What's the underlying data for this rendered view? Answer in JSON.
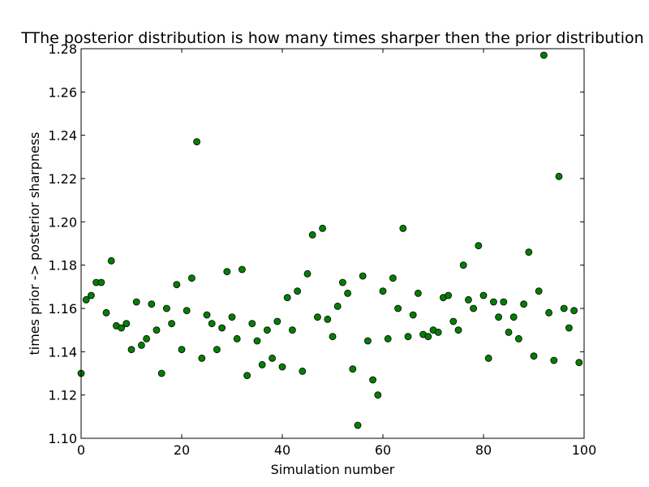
{
  "chart_data": {
    "type": "scatter",
    "title": "TThe posterior distribution is how many times sharper then the prior distribution",
    "xlabel": "Simulation number",
    "ylabel": "times prior -> posterior sharpness",
    "xlim": [
      0,
      100
    ],
    "ylim": [
      1.1,
      1.28
    ],
    "xticks": [
      0,
      20,
      40,
      60,
      80,
      100
    ],
    "yticks": [
      1.1,
      1.12,
      1.14,
      1.16,
      1.18,
      1.2,
      1.22,
      1.24,
      1.26,
      1.28
    ],
    "grid": false,
    "marker_color": "#008000",
    "marker_edge": "#000000",
    "series": [
      {
        "x": [
          0,
          1,
          2,
          3,
          4,
          5,
          6,
          7,
          8,
          9,
          10,
          11,
          12,
          13,
          14,
          15,
          16,
          17,
          18,
          19,
          20,
          21,
          22,
          23,
          24,
          25,
          26,
          27,
          28,
          29,
          30,
          31,
          32,
          33,
          34,
          35,
          36,
          37,
          38,
          39,
          40,
          41,
          42,
          43,
          44,
          45,
          46,
          47,
          48,
          49,
          50,
          51,
          52,
          53,
          54,
          55,
          56,
          57,
          58,
          59,
          60,
          61,
          62,
          63,
          64,
          65,
          66,
          67,
          68,
          69,
          70,
          71,
          72,
          73,
          74,
          75,
          76,
          77,
          78,
          79,
          80,
          81,
          82,
          83,
          84,
          85,
          86,
          87,
          88,
          89,
          90,
          91,
          92,
          93,
          94,
          95,
          96,
          97,
          98,
          99
        ],
        "y": [
          1.13,
          1.164,
          1.166,
          1.172,
          1.172,
          1.158,
          1.182,
          1.152,
          1.151,
          1.153,
          1.141,
          1.163,
          1.143,
          1.146,
          1.162,
          1.15,
          1.13,
          1.16,
          1.153,
          1.171,
          1.141,
          1.159,
          1.174,
          1.237,
          1.137,
          1.157,
          1.153,
          1.141,
          1.151,
          1.177,
          1.156,
          1.146,
          1.178,
          1.129,
          1.153,
          1.145,
          1.134,
          1.15,
          1.137,
          1.154,
          1.133,
          1.165,
          1.15,
          1.168,
          1.131,
          1.176,
          1.194,
          1.156,
          1.197,
          1.155,
          1.147,
          1.161,
          1.172,
          1.167,
          1.132,
          1.106,
          1.175,
          1.145,
          1.127,
          1.12,
          1.168,
          1.146,
          1.174,
          1.16,
          1.197,
          1.147,
          1.157,
          1.167,
          1.148,
          1.147,
          1.15,
          1.149,
          1.165,
          1.166,
          1.154,
          1.15,
          1.18,
          1.164,
          1.16,
          1.189,
          1.166,
          1.137,
          1.163,
          1.156,
          1.163,
          1.149,
          1.156,
          1.146,
          1.162,
          1.186,
          1.138,
          1.168,
          1.277,
          1.158,
          1.136,
          1.221,
          1.16,
          1.151,
          1.159,
          1.135
        ]
      }
    ]
  }
}
